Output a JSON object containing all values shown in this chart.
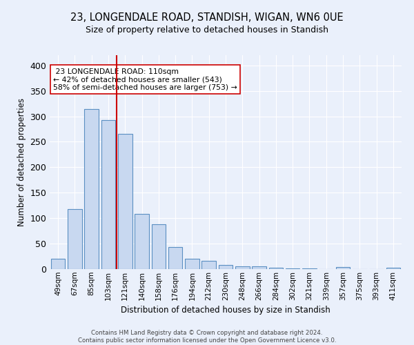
{
  "title": "23, LONGENDALE ROAD, STANDISH, WIGAN, WN6 0UE",
  "subtitle": "Size of property relative to detached houses in Standish",
  "xlabel": "Distribution of detached houses by size in Standish",
  "ylabel": "Number of detached properties",
  "bar_color": "#c8d8f0",
  "bar_edge_color": "#5a8fc2",
  "background_color": "#eaf0fb",
  "grid_color": "#ffffff",
  "categories": [
    "49sqm",
    "67sqm",
    "85sqm",
    "103sqm",
    "121sqm",
    "140sqm",
    "158sqm",
    "176sqm",
    "194sqm",
    "212sqm",
    "230sqm",
    "248sqm",
    "266sqm",
    "284sqm",
    "302sqm",
    "321sqm",
    "339sqm",
    "357sqm",
    "375sqm",
    "393sqm",
    "411sqm"
  ],
  "values": [
    20,
    118,
    315,
    293,
    265,
    108,
    88,
    44,
    20,
    16,
    8,
    6,
    5,
    3,
    2,
    1,
    0,
    4,
    0,
    0,
    3
  ],
  "property_label": "23 LONGENDALE ROAD: 110sqm",
  "pct_smaller": 42,
  "n_smaller": 543,
  "pct_larger": 58,
  "n_larger": 753,
  "red_line_x": 3.5,
  "ylim": [
    0,
    420
  ],
  "footnote": "Contains HM Land Registry data © Crown copyright and database right 2024.\nContains public sector information licensed under the Open Government Licence v3.0.",
  "annotation_box_color": "#ffffff",
  "annotation_box_edge": "#cc0000",
  "red_line_color": "#cc0000"
}
